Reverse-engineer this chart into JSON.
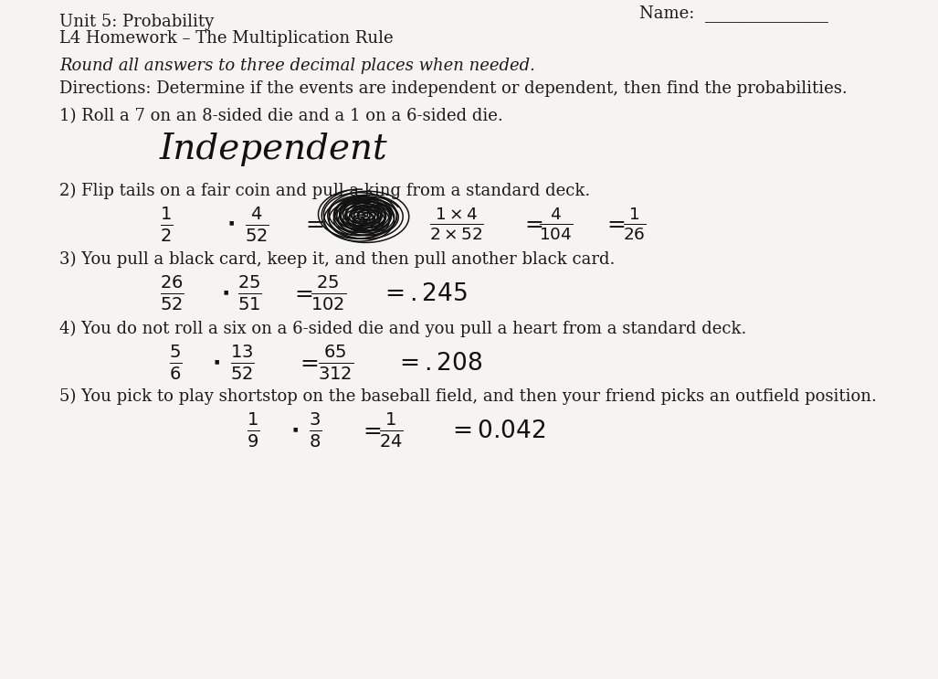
{
  "bg_color": "#e8e8e8",
  "paper_color": "#f5f4f0",
  "text_color": "#1a1a1a",
  "title_line1": "Unit 5: Probability",
  "title_line2": "L4 Homework – The Multiplication Rule",
  "name_label": "Name:  _______________",
  "italic_line": "Round all answers to three decimal places when needed.",
  "directions": "Directions: Determine if the events are independent or dependent, then find the probabilities.",
  "q1": "1) Roll a 7 on an 8-sided die and a 1 on a 6-sided die.",
  "q1_answer": "Independent",
  "q2": "2) Flip tails on a fair coin and pull a king from a standard deck.",
  "q3": "3) You pull a black card, keep it, and then pull another black card.",
  "q4": "4) You do not roll a six on a 6-sided die and you pull a heart from a standard deck.",
  "q5": "5) You pick to play shortstop on the baseball field, and then your friend picks an outfield position."
}
